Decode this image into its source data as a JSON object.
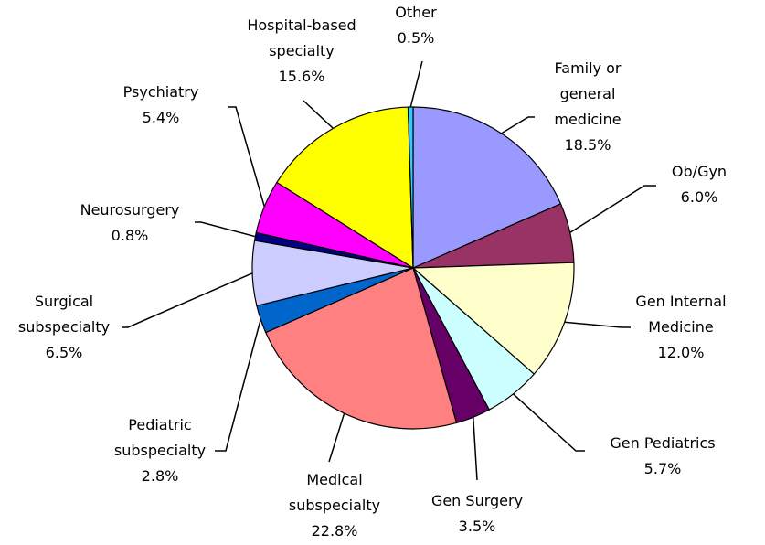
{
  "chart_data": {
    "type": "pie",
    "categories": [
      "Family or general medicine",
      "Ob/Gyn",
      "Gen Internal Medicine",
      "Gen Pediatrics",
      "Gen Surgery",
      "Medical subspecialty",
      "Pediatric subspecialty",
      "Surgical subspecialty",
      "Neurosurgery",
      "Psychiatry",
      "Hospital-based specialty",
      "Other"
    ],
    "values": [
      18.5,
      6.0,
      12.0,
      5.7,
      3.5,
      22.8,
      2.8,
      6.5,
      0.8,
      5.4,
      15.6,
      0.5
    ],
    "value_labels": [
      "18.5%",
      "6.0%",
      "12.0%",
      "5.7%",
      "3.5%",
      "22.8%",
      "2.8%",
      "6.5%",
      "0.8%",
      "5.4%",
      "15.6%",
      "0.5%"
    ],
    "colors": [
      "#9999ff",
      "#993366",
      "#ffffcc",
      "#ccffff",
      "#660066",
      "#ff8080",
      "#0066cc",
      "#ccccff",
      "#000080",
      "#ff00ff",
      "#ffff00",
      "#33ccff"
    ]
  }
}
